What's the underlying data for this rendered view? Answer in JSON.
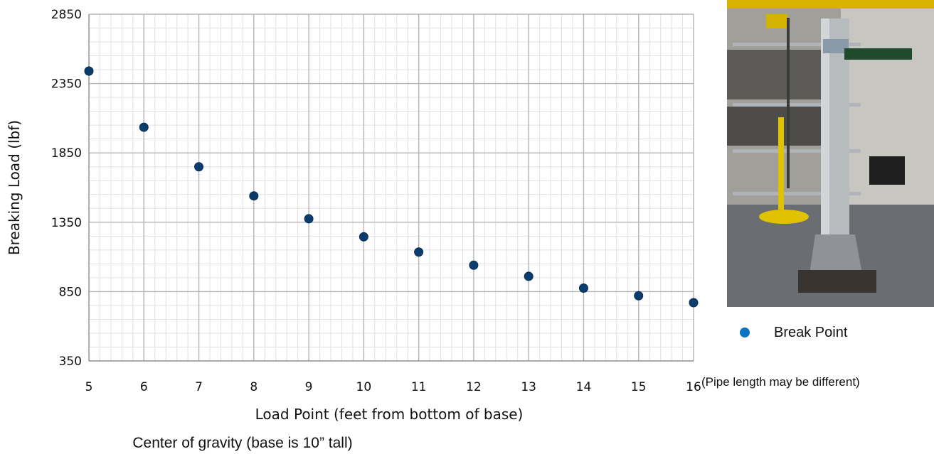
{
  "chart_data": {
    "type": "scatter",
    "x": [
      5,
      6,
      7,
      8,
      9,
      10,
      11,
      12,
      13,
      14,
      15,
      16
    ],
    "y": [
      2440,
      2035,
      1750,
      1540,
      1375,
      1245,
      1135,
      1040,
      960,
      875,
      820,
      770
    ],
    "xlabel": "Load Point (feet from bottom of base)",
    "ylabel": "Breaking Load (lbf)",
    "xlim": [
      5,
      16
    ],
    "ylim": [
      350,
      2850
    ],
    "x_ticks": [
      "5",
      "6",
      "7",
      "8",
      "9",
      "10",
      "11",
      "12",
      "13",
      "14",
      "15",
      "16"
    ],
    "y_ticks": [
      "350",
      "850",
      "1350",
      "1850",
      "2350",
      "2850"
    ],
    "grid": true,
    "marker_color": "#0b3c6e",
    "legend": {
      "position": "right",
      "entries": [
        {
          "label": "Break Point",
          "color": "#0a72c2"
        }
      ]
    }
  },
  "annotations": {
    "pipe_note": "(Pipe length may be different)",
    "subtitle": "Center of gravity (base is 10” tall)"
  }
}
